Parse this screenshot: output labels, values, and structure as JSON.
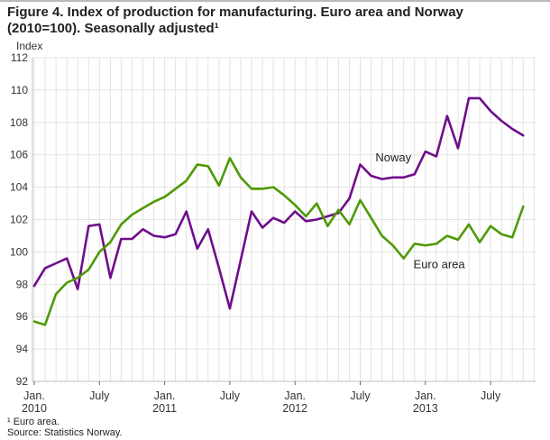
{
  "title": {
    "line1": "Figure 4. Index of production for manufacturing. Euro area and Norway",
    "line2": "(2010=100). Seasonally adjusted¹"
  },
  "footnotes": {
    "note": "¹ Euro area.",
    "source": "Source: Statistics Norway."
  },
  "chart_data": {
    "type": "line",
    "title": "Figure 4. Index of production for manufacturing. Euro area and Norway (2010=100). Seasonally adjusted",
    "ylabel": "Index",
    "xlabel": "",
    "ylim": [
      92,
      112
    ],
    "y_ticks": [
      92,
      94,
      96,
      98,
      100,
      102,
      104,
      106,
      108,
      110,
      112
    ],
    "grid": true,
    "legend_position": "inline-labels",
    "x_ticks": [
      {
        "month": 0,
        "label": "Jan.",
        "year": "2010"
      },
      {
        "month": 6,
        "label": "July",
        "year": ""
      },
      {
        "month": 12,
        "label": "Jan.",
        "year": "2011"
      },
      {
        "month": 18,
        "label": "July",
        "year": ""
      },
      {
        "month": 24,
        "label": "Jan.",
        "year": "2012"
      },
      {
        "month": 30,
        "label": "July",
        "year": ""
      },
      {
        "month": 36,
        "label": "Jan.",
        "year": "2013"
      },
      {
        "month": 42,
        "label": "July",
        "year": ""
      }
    ],
    "categories": [
      "2010-01",
      "2010-02",
      "2010-03",
      "2010-04",
      "2010-05",
      "2010-06",
      "2010-07",
      "2010-08",
      "2010-09",
      "2010-10",
      "2010-11",
      "2010-12",
      "2011-01",
      "2011-02",
      "2011-03",
      "2011-04",
      "2011-05",
      "2011-06",
      "2011-07",
      "2011-08",
      "2011-09",
      "2011-10",
      "2011-11",
      "2011-12",
      "2012-01",
      "2012-02",
      "2012-03",
      "2012-04",
      "2012-05",
      "2012-06",
      "2012-07",
      "2012-08",
      "2012-09",
      "2012-10",
      "2012-11",
      "2012-12",
      "2013-01",
      "2013-02",
      "2013-03",
      "2013-04",
      "2013-05",
      "2013-06",
      "2013-07",
      "2013-08",
      "2013-09",
      "2013-10"
    ],
    "series": [
      {
        "name": "Noway",
        "color": "#6F0D8B",
        "values": [
          97.9,
          99.0,
          99.3,
          99.6,
          97.7,
          101.6,
          101.7,
          98.4,
          100.8,
          100.8,
          101.4,
          101.0,
          100.9,
          101.1,
          102.5,
          100.2,
          101.4,
          99.0,
          96.5,
          99.5,
          102.5,
          101.5,
          102.1,
          101.8,
          102.5,
          101.9,
          102.0,
          102.2,
          102.4,
          103.3,
          105.4,
          104.7,
          104.5,
          104.6,
          104.6,
          104.8,
          106.2,
          105.9,
          108.4,
          106.4,
          109.5,
          109.5,
          108.7,
          108.1,
          107.6,
          107.2
        ]
      },
      {
        "name": "Euro area",
        "color": "#4E9A06",
        "values": [
          95.7,
          95.5,
          97.4,
          98.1,
          98.4,
          98.9,
          100.0,
          100.6,
          101.7,
          102.3,
          102.7,
          103.1,
          103.4,
          103.9,
          104.4,
          105.4,
          105.3,
          104.1,
          105.8,
          104.6,
          103.9,
          103.9,
          104.0,
          103.5,
          102.9,
          102.2,
          103.0,
          101.6,
          102.6,
          101.7,
          103.2,
          102.1,
          101.0,
          100.4,
          99.6,
          100.5,
          100.4,
          100.5,
          101.0,
          100.75,
          101.7,
          100.6,
          101.6,
          101.1,
          100.9,
          102.8
        ]
      }
    ],
    "annotations": [
      {
        "text": "Noway",
        "month": 31.4,
        "value": 105.6
      },
      {
        "text": "Euro area",
        "month": 34.9,
        "value": 99.0
      }
    ],
    "colors": {
      "gridline": "#e3e3e3",
      "axis": "#bfbfbf",
      "tick": "#666666",
      "text": "#333333"
    }
  }
}
